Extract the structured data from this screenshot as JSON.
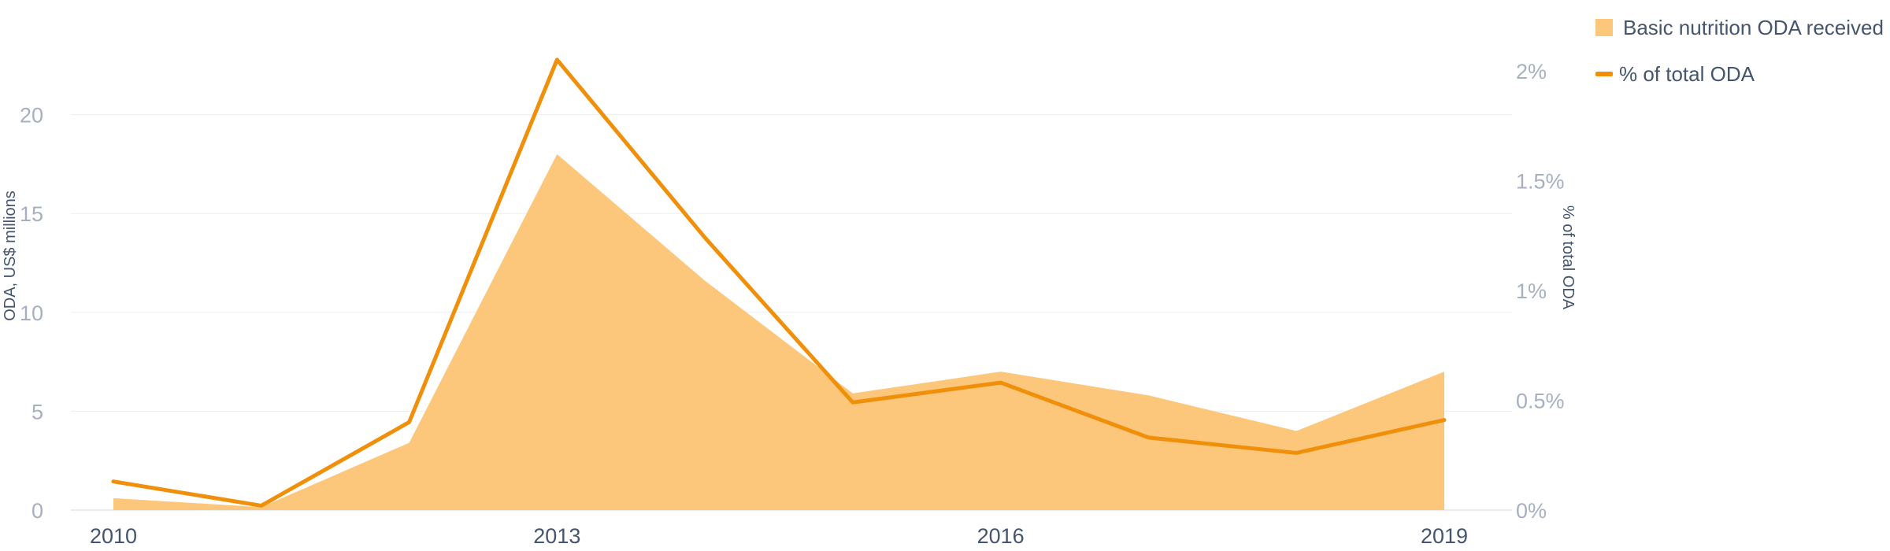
{
  "chart_data": {
    "type": "area",
    "x": [
      2010,
      2011,
      2012,
      2013,
      2014,
      2015,
      2016,
      2017,
      2018,
      2019
    ],
    "x_tick_labels": [
      "2010",
      "2013",
      "2016",
      "2019"
    ],
    "series": [
      {
        "name": "Basic nutrition ODA received",
        "type": "area",
        "axis": "left",
        "color": "#fcc77a",
        "values": [
          0.6,
          0.15,
          3.4,
          18.0,
          11.6,
          5.9,
          7.0,
          5.8,
          4.0,
          7.0
        ]
      },
      {
        "name": "% of total ODA",
        "type": "line",
        "axis": "right",
        "color": "#f0900a",
        "values": [
          0.13,
          0.02,
          0.4,
          2.05,
          1.24,
          0.49,
          0.58,
          0.33,
          0.26,
          0.41
        ]
      }
    ],
    "y_left": {
      "label": "ODA, US$ millions",
      "range": [
        0,
        25
      ],
      "ticks": [
        0,
        5,
        10,
        15,
        20
      ],
      "tick_labels": [
        "0",
        "5",
        "10",
        "15",
        "20"
      ]
    },
    "y_right": {
      "label": "% of total ODA",
      "range": [
        0,
        2.25
      ],
      "ticks": [
        0,
        0.5,
        1,
        1.5,
        2
      ],
      "tick_labels": [
        "0%",
        "0.5%",
        "1%",
        "1.5%",
        "2%"
      ]
    },
    "grid": true,
    "legend_position": "top-right"
  }
}
